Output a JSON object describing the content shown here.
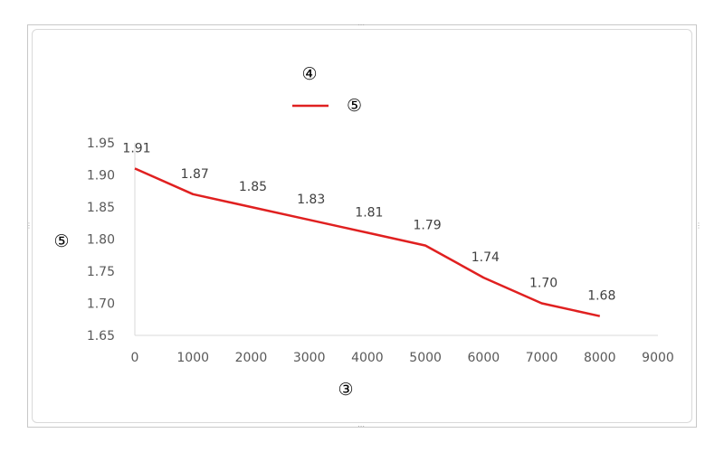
{
  "chart_data": {
    "type": "line",
    "title": "④",
    "xlabel": "③",
    "ylabel": "⑤",
    "x": [
      0,
      1000,
      2000,
      3000,
      4000,
      5000,
      6000,
      7000,
      8000
    ],
    "series": [
      {
        "name": "⑤",
        "color": "#e02020",
        "values": [
          1.91,
          1.87,
          1.85,
          1.83,
          1.81,
          1.79,
          1.74,
          1.7,
          1.68
        ]
      }
    ],
    "data_labels": [
      "1.91",
      "1.87",
      "1.85",
      "1.83",
      "1.81",
      "1.79",
      "1.74",
      "1.70",
      "1.68"
    ],
    "xlim": [
      0,
      9000
    ],
    "ylim": [
      1.65,
      1.95
    ],
    "x_ticks": [
      "0",
      "1000",
      "2000",
      "3000",
      "4000",
      "5000",
      "6000",
      "7000",
      "8000",
      "9000"
    ],
    "y_ticks": [
      "1.95",
      "1.90",
      "1.85",
      "1.80",
      "1.75",
      "1.70",
      "1.65"
    ],
    "grid": false,
    "legend_position": "top"
  }
}
